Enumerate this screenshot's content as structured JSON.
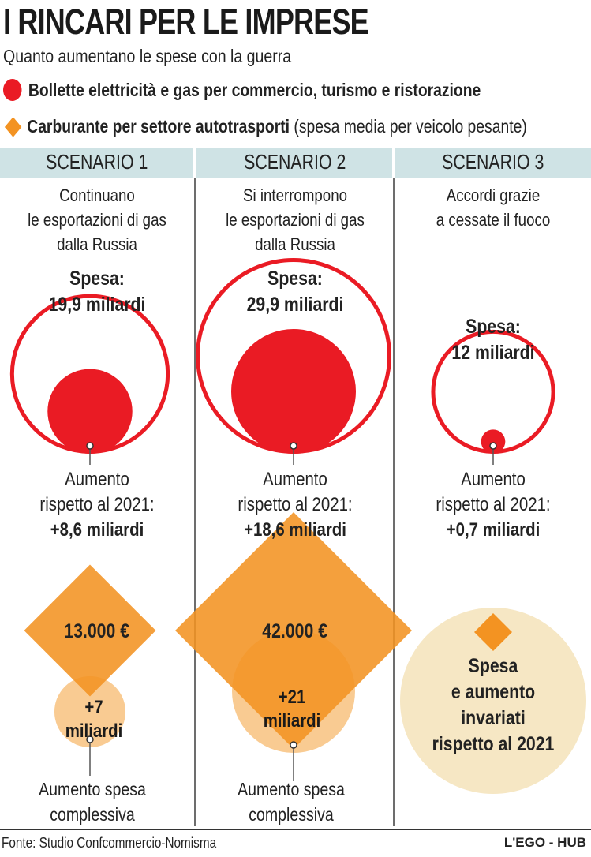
{
  "header": {
    "title": "I RINCARI PER LE IMPRESE",
    "subtitle": "Quanto aumentano le spese con la guerra"
  },
  "legend": {
    "electricity": "Bollette elettricità e gas per commercio, turismo e ristorazione",
    "fuel_bold": "Carburante per settore autotrasporti",
    "fuel_note": "(spesa media per veicolo pesante)"
  },
  "colors": {
    "electricity": "#ea1b24",
    "fuel": "#f39322",
    "increase": "#f8c27f",
    "invariant": "#f6e7c4",
    "header_band": "#cfe3e5"
  },
  "scenarios": [
    {
      "name": "SCENARIO 1",
      "desc": [
        "Continuano",
        "le esportazioni di gas",
        "dalla Russia"
      ],
      "spend_label": "Spesa:",
      "spend_value": "19,9 miliardi",
      "inc_label": [
        "Aumento",
        "rispetto al 2021:"
      ],
      "inc_value": "+8,6 miliardi",
      "fuel_spend": "13.000 €",
      "fuel_inc": [
        "+7",
        "miliardi"
      ],
      "fuel_inc_label": [
        "Aumento spesa",
        "complessiva"
      ]
    },
    {
      "name": "SCENARIO 2",
      "desc": [
        "Si interrompono",
        "le esportazioni di gas",
        "dalla Russia"
      ],
      "spend_label": "Spesa:",
      "spend_value": "29,9 miliardi",
      "inc_label": [
        "Aumento",
        "rispetto al 2021:"
      ],
      "inc_value": "+18,6 miliardi",
      "fuel_spend": "42.000 €",
      "fuel_inc": [
        "+21",
        "miliardi"
      ],
      "fuel_inc_label": [
        "Aumento spesa",
        "complessiva"
      ]
    },
    {
      "name": "SCENARIO 3",
      "desc": [
        "Accordi grazie",
        "a cessate il fuoco"
      ],
      "spend_label": "Spesa:",
      "spend_value": "12 miliardi",
      "inc_label": [
        "Aumento",
        "rispetto al 2021:"
      ],
      "inc_value": "+0,7 miliardi",
      "fuel_note": [
        "Spesa",
        "e aumento",
        "invariati",
        "rispetto al 2021"
      ]
    }
  ],
  "chart_data": {
    "type": "bubble",
    "categories": [
      "SCENARIO 1",
      "SCENARIO 2",
      "SCENARIO 3"
    ],
    "series": [
      {
        "name": "Spesa",
        "unit": "miliardi",
        "values": [
          19.9,
          29.9,
          12
        ]
      },
      {
        "name": "Aumento rispetto al 2021",
        "unit": "miliardi",
        "values": [
          8.6,
          18.6,
          0.7
        ]
      },
      {
        "name": "Carburante per settore autotrasporti",
        "unit": "€",
        "values": [
          13000,
          42000,
          null
        ]
      },
      {
        "name": "Aumento spesa complessiva",
        "unit": "miliardi",
        "values": [
          7,
          21,
          null
        ]
      }
    ]
  },
  "footer": {
    "source": "Fonte: Studio Confcommercio-Nomisma",
    "brand": "L'EGO - HUB"
  }
}
